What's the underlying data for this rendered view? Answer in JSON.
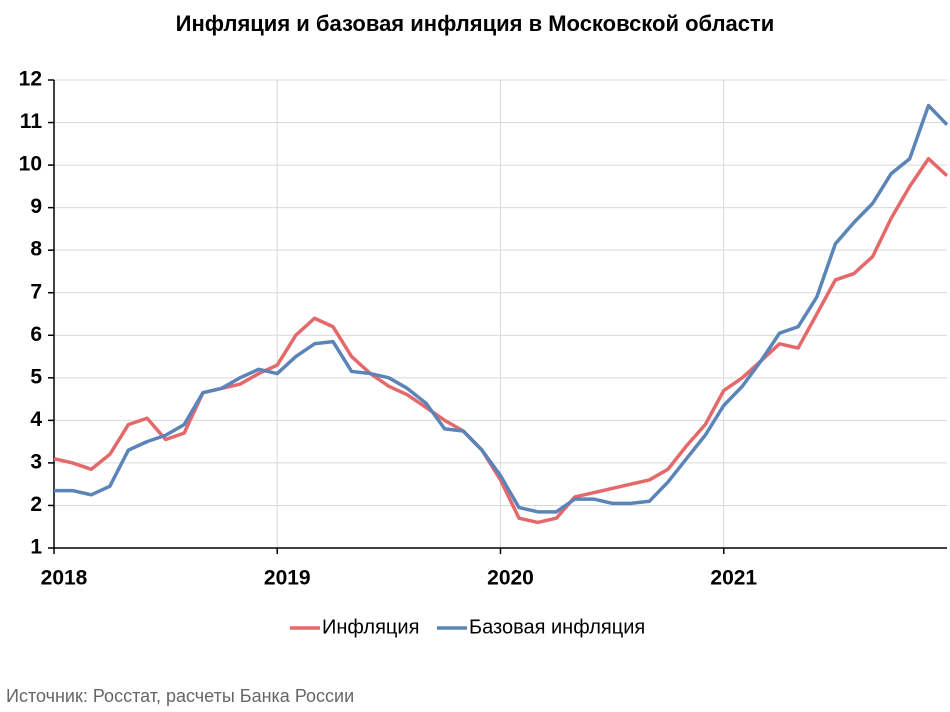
{
  "chart_data": {
    "type": "line",
    "title": "Инфляция и базовая инфляция в Московской области",
    "source": "Источник: Росстат, расчеты Банка России",
    "x": [
      2018,
      2018.083,
      2018.167,
      2018.25,
      2018.333,
      2018.417,
      2018.5,
      2018.583,
      2018.667,
      2018.75,
      2018.833,
      2018.917,
      2019,
      2019.083,
      2019.167,
      2019.25,
      2019.333,
      2019.417,
      2019.5,
      2019.583,
      2019.667,
      2019.75,
      2019.833,
      2019.917,
      2020,
      2020.083,
      2020.167,
      2020.25,
      2020.333,
      2020.417,
      2020.5,
      2020.583,
      2020.667,
      2020.75,
      2020.833,
      2020.917,
      2021,
      2021.083,
      2021.167,
      2021.25,
      2021.333,
      2021.417,
      2021.5,
      2021.583,
      2021.667,
      2021.75,
      2021.833,
      2021.917,
      2022
    ],
    "series": [
      {
        "name": "Инфляция",
        "color": "#e5686a",
        "values": [
          3.1,
          3.0,
          2.85,
          3.2,
          3.9,
          4.05,
          3.55,
          3.7,
          4.65,
          4.75,
          4.85,
          5.1,
          5.3,
          6.0,
          6.4,
          6.2,
          5.5,
          5.1,
          4.8,
          4.6,
          4.3,
          4.0,
          3.75,
          3.3,
          2.6,
          1.7,
          1.6,
          1.7,
          2.2,
          2.3,
          2.4,
          2.5,
          2.6,
          2.85,
          3.4,
          3.9,
          4.7,
          5.0,
          5.4,
          5.8,
          5.7,
          6.5,
          7.3,
          7.45,
          7.85,
          8.75,
          9.5,
          10.15,
          9.75
        ]
      },
      {
        "name": "Базовая инфляция",
        "color": "#5b84b9",
        "values": [
          2.35,
          2.35,
          2.25,
          2.45,
          3.3,
          3.5,
          3.65,
          3.9,
          4.65,
          4.75,
          5.0,
          5.2,
          5.1,
          5.5,
          5.8,
          5.85,
          5.15,
          5.1,
          5.0,
          4.75,
          4.4,
          3.8,
          3.75,
          3.3,
          2.7,
          1.95,
          1.85,
          1.85,
          2.15,
          2.15,
          2.05,
          2.05,
          2.1,
          2.55,
          3.1,
          3.65,
          4.35,
          4.8,
          5.4,
          6.05,
          6.2,
          6.9,
          8.15,
          8.65,
          9.1,
          9.8,
          10.15,
          11.4,
          10.95
        ]
      }
    ],
    "xlim": [
      2018,
      2022
    ],
    "xticks": [
      2018,
      2019,
      2020,
      2021
    ],
    "ylim": [
      1,
      12
    ],
    "yticks": [
      1,
      2,
      3,
      4,
      5,
      6,
      7,
      8,
      9,
      10,
      11,
      12
    ],
    "grid": true,
    "legend": "bottom"
  }
}
